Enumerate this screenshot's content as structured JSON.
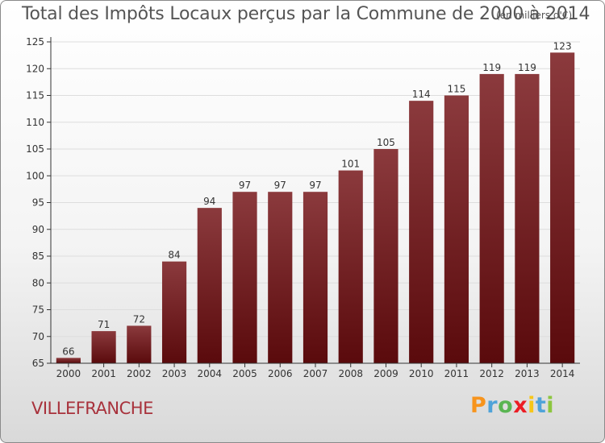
{
  "title": "Total des Impôts Locaux perçus par la Commune de 2000 à 2014",
  "unit_note": "(en milliers d'€)",
  "commune": "VILLEFRANCHE",
  "logo": {
    "letters": [
      "P",
      "r",
      "o",
      "x",
      "i",
      "t",
      "i"
    ],
    "colors": [
      "#f7941d",
      "#4fa3d9",
      "#5ab552",
      "#ec1c24",
      "#f7c618",
      "#4fa3d9",
      "#8cc63f"
    ]
  },
  "colors": {
    "bar_top": "#8b3a3d",
    "bar_bottom": "#5a0a0c",
    "axis": "#333333",
    "grid": "#dddddd",
    "label": "#333333"
  },
  "chart_data": {
    "type": "bar",
    "title": "Total des Impôts Locaux perçus par la Commune de 2000 à 2014",
    "categories": [
      "2000",
      "2001",
      "2002",
      "2003",
      "2004",
      "2005",
      "2006",
      "2007",
      "2008",
      "2009",
      "2010",
      "2011",
      "2012",
      "2013",
      "2014"
    ],
    "values": [
      66,
      71,
      72,
      84,
      94,
      97,
      97,
      97,
      101,
      105,
      114,
      115,
      119,
      119,
      123
    ],
    "ylim": [
      65,
      125
    ],
    "yticks": [
      65,
      70,
      75,
      80,
      85,
      90,
      95,
      100,
      105,
      110,
      115,
      120,
      125
    ],
    "xlabel": "",
    "ylabel": "",
    "data_labels": true
  }
}
